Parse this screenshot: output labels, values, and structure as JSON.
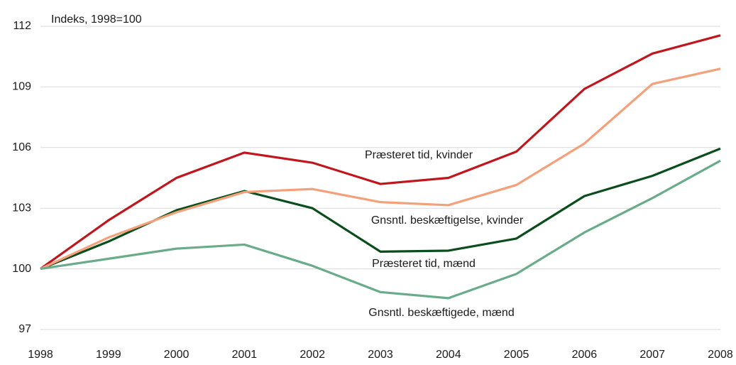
{
  "chart_data": {
    "type": "line",
    "y_label": "Indeks, 1998=100",
    "x": [
      1998,
      1999,
      2000,
      2001,
      2002,
      2003,
      2004,
      2005,
      2006,
      2007,
      2008
    ],
    "xlim": [
      1998,
      2008
    ],
    "xticks": [
      1998,
      1999,
      2000,
      2001,
      2002,
      2003,
      2004,
      2005,
      2006,
      2007,
      2008
    ],
    "ylim": [
      97,
      112
    ],
    "yticks": [
      97,
      100,
      103,
      106,
      109,
      112
    ],
    "grid": true,
    "series": [
      {
        "name": "Præsteret tid, kvinder",
        "color": "#c0161e",
        "values": [
          100,
          102.4,
          104.5,
          105.75,
          105.25,
          104.2,
          104.5,
          105.8,
          108.9,
          110.65,
          111.55
        ]
      },
      {
        "name": "Gnsntl. beskæftigelse,  kvinder",
        "color": "#0b4d1c",
        "values": [
          100,
          101.35,
          102.9,
          103.85,
          103.0,
          100.85,
          100.9,
          101.5,
          103.6,
          104.6,
          105.95
        ]
      },
      {
        "name": "Præsteret tid, mænd",
        "color": "#f4a07a",
        "values": [
          100,
          101.55,
          102.8,
          103.8,
          103.95,
          103.3,
          103.15,
          104.15,
          106.2,
          109.15,
          109.9
        ]
      },
      {
        "name": "Gnsntl. beskæftigede,  mænd",
        "color": "#6aab8a",
        "values": [
          100,
          100.5,
          101.0,
          101.2,
          100.15,
          98.85,
          98.55,
          99.75,
          101.8,
          103.5,
          105.35
        ]
      }
    ]
  }
}
